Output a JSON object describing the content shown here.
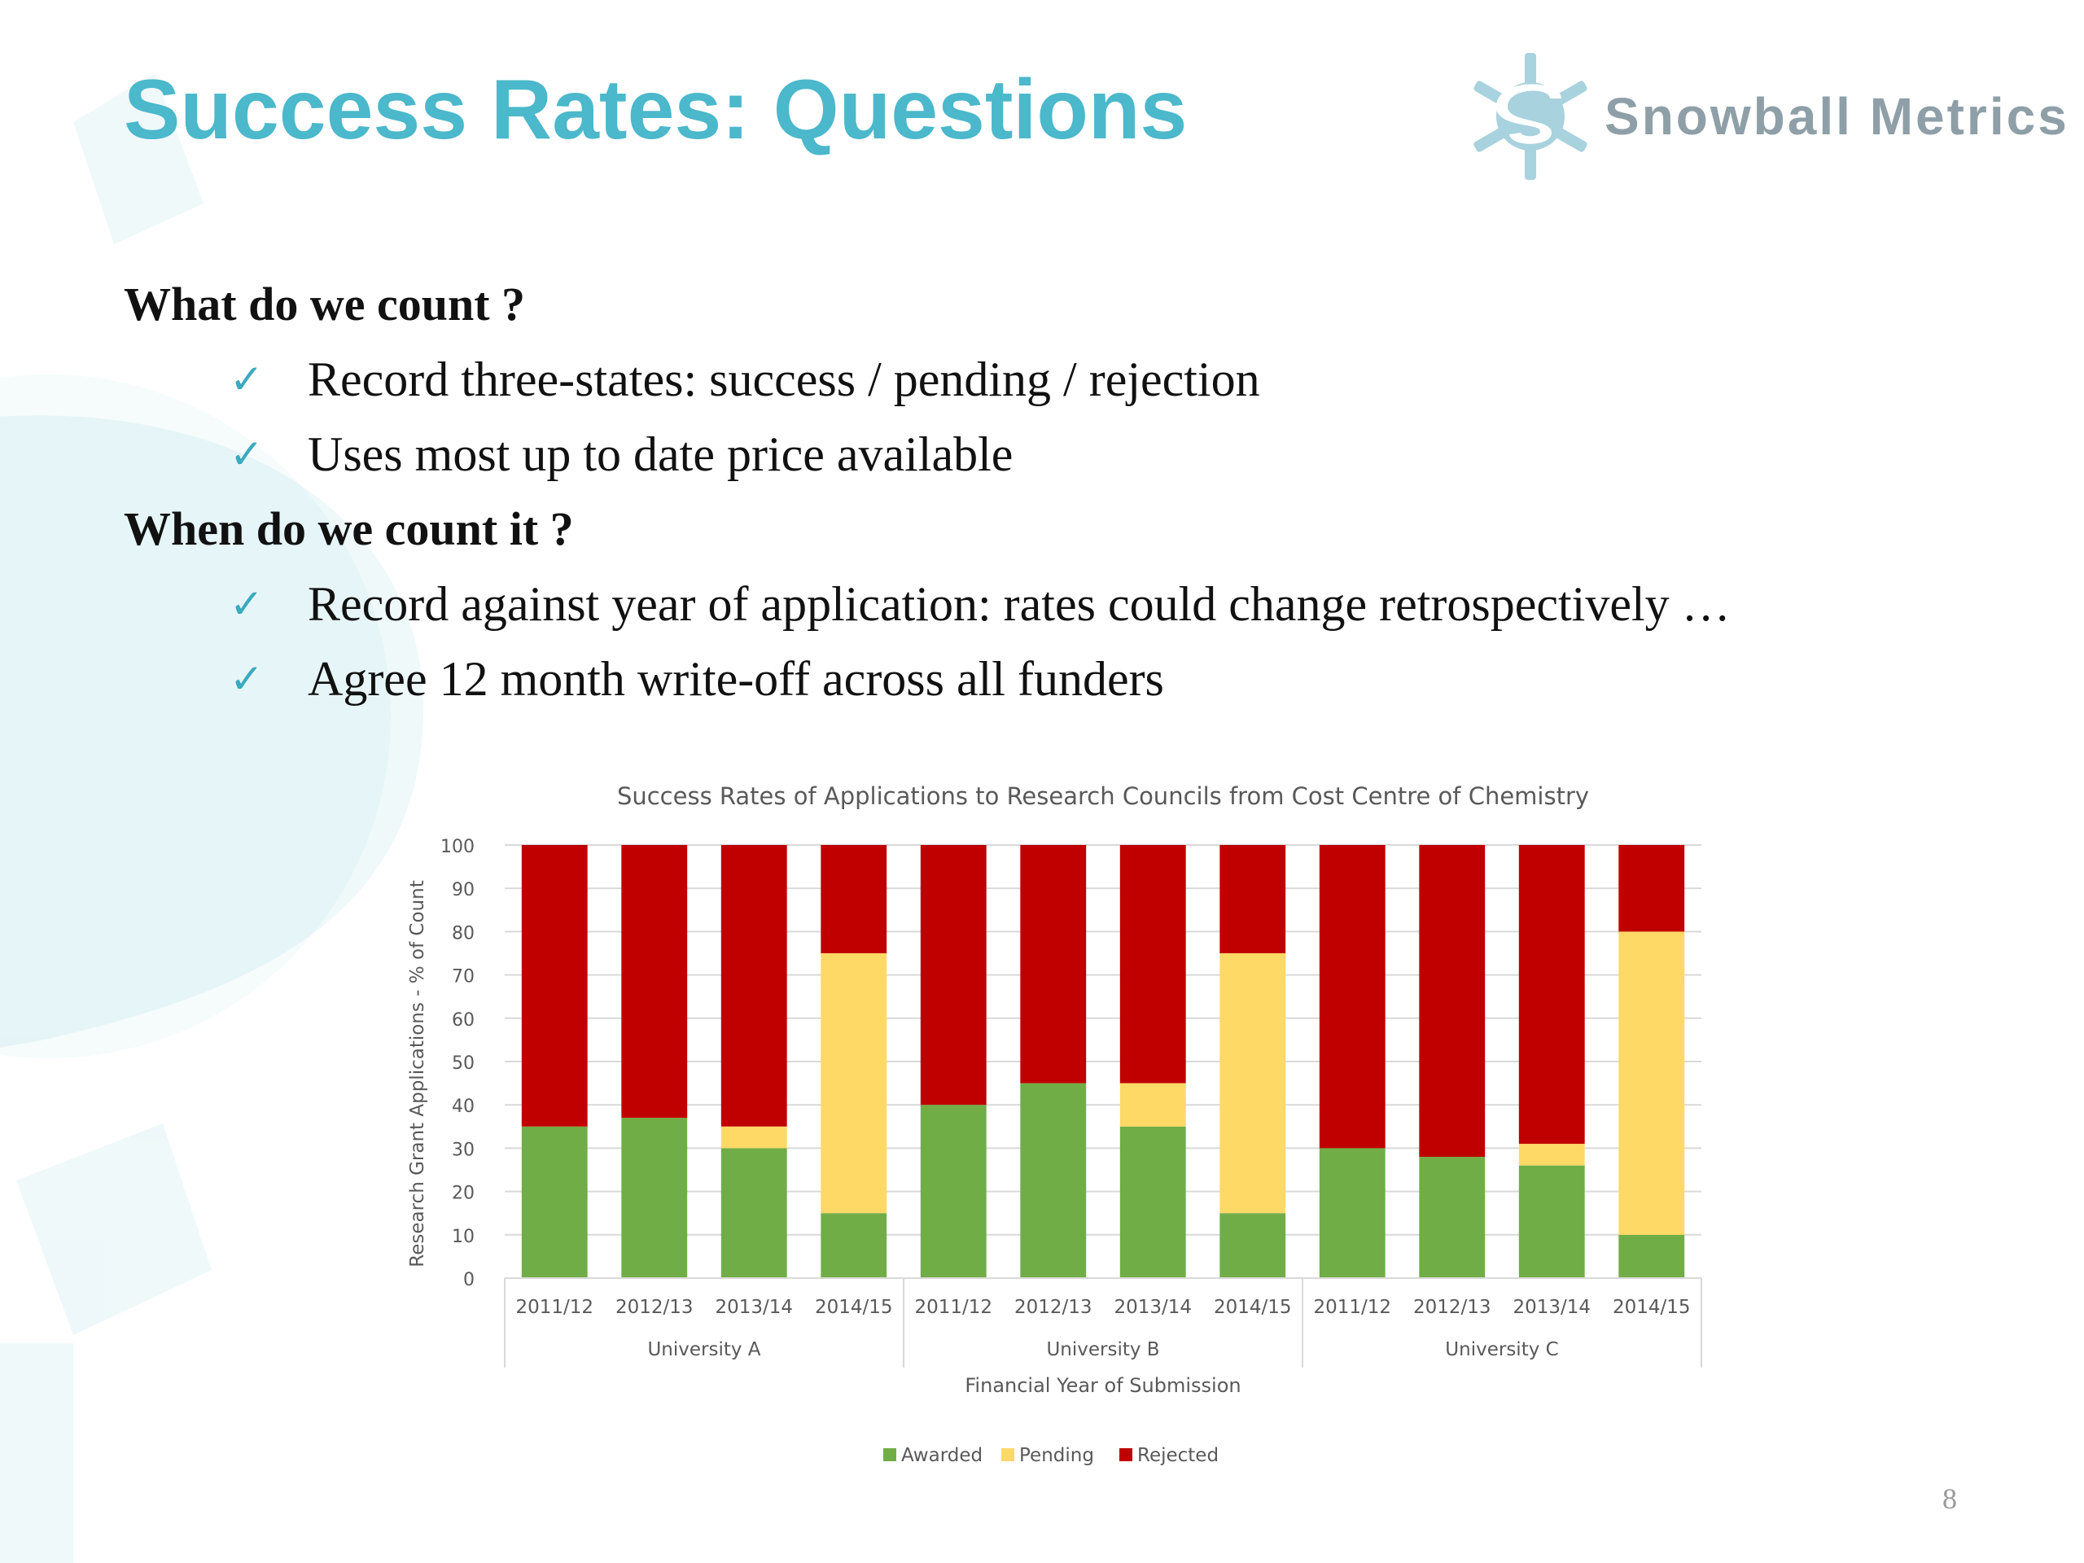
{
  "slide": {
    "title": "Success Rates: Questions",
    "brand": "Snowball Metrics",
    "page_number": "8",
    "sections": [
      {
        "heading": "What do we count ?",
        "bullets": [
          "Record three-states:  success / pending / rejection",
          "Uses most up to date price available"
        ]
      },
      {
        "heading": "When do we count it ?",
        "bullets": [
          "Record against year of application: rates could change retrospectively  …",
          "Agree 12 month write-off across all funders"
        ]
      }
    ]
  },
  "icons": {
    "bullet": "checkmark-icon",
    "logo": "snowflake-logo-icon"
  },
  "colors": {
    "title": "#4bb8cb",
    "brand_text": "#8e9fa7",
    "check": "#3aaabf",
    "awarded": "#70ad47",
    "pending": "#ffd966",
    "rejected": "#c00000"
  },
  "chart_data": {
    "type": "bar",
    "stacked": true,
    "title": "Success Rates of Applications to Research Councils from Cost Centre of Chemistry",
    "ylabel": "Research Grant Applications - % of Count",
    "xlabel": "Financial Year of Submission",
    "ylim": [
      0,
      100
    ],
    "yticks": [
      0,
      10,
      20,
      30,
      40,
      50,
      60,
      70,
      80,
      90,
      100
    ],
    "grid": true,
    "legend_position": "bottom",
    "groups": [
      {
        "name": "University A",
        "categories": [
          "2011/12",
          "2012/13",
          "2013/14",
          "2014/15"
        ]
      },
      {
        "name": "University B",
        "categories": [
          "2011/12",
          "2012/13",
          "2013/14",
          "2014/15"
        ]
      },
      {
        "name": "University C",
        "categories": [
          "2011/12",
          "2012/13",
          "2013/14",
          "2014/15"
        ]
      }
    ],
    "series": [
      {
        "name": "Awarded",
        "color": "#70ad47",
        "values": [
          35,
          37,
          30,
          15,
          40,
          45,
          35,
          15,
          30,
          28,
          26,
          10
        ]
      },
      {
        "name": "Pending",
        "color": "#ffd966",
        "values": [
          0,
          0,
          5,
          60,
          0,
          0,
          10,
          60,
          0,
          0,
          5,
          70
        ]
      },
      {
        "name": "Rejected",
        "color": "#c00000",
        "values": [
          65,
          63,
          65,
          25,
          60,
          55,
          55,
          25,
          70,
          72,
          69,
          20
        ]
      }
    ]
  }
}
